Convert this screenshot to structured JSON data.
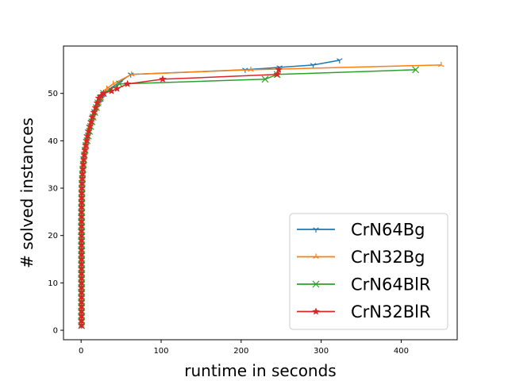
{
  "chart_data": {
    "type": "line",
    "title": "",
    "xlabel": "runtime in seconds",
    "ylabel": "# solved instances",
    "xlim": [
      -22,
      470
    ],
    "ylim": [
      -2,
      60
    ],
    "xticks": [
      0,
      100,
      200,
      300,
      400
    ],
    "yticks": [
      0,
      10,
      20,
      30,
      40,
      50
    ],
    "grid": false,
    "legend_position": "lower-right",
    "series": [
      {
        "name": "CrN64Bg",
        "color": "#1f77b4",
        "marker": "tri_down",
        "x": [
          0.5,
          0.5,
          0.5,
          0.5,
          0.5,
          0.5,
          0.5,
          0.5,
          0.5,
          0.5,
          0.5,
          0.5,
          0.5,
          0.5,
          0.5,
          0.5,
          0.5,
          0.5,
          0.5,
          0.5,
          0.5,
          0.5,
          0.5,
          0.5,
          0.5,
          0.6,
          0.7,
          0.8,
          0.9,
          1.0,
          1.2,
          1.5,
          1.8,
          2.2,
          2.7,
          3.2,
          3.8,
          4.5,
          5.2,
          6.0,
          7.0,
          8.5,
          10,
          12,
          14,
          17,
          20,
          23,
          26,
          30,
          36,
          62,
          205,
          248,
          290,
          323
        ],
        "y": [
          1,
          2,
          3,
          4,
          5,
          6,
          7,
          8,
          9,
          10,
          11,
          12,
          13,
          14,
          15,
          16,
          17,
          18,
          19,
          20,
          21,
          22,
          23,
          24,
          25,
          26,
          27,
          28,
          29,
          30,
          31,
          32,
          33,
          34,
          35,
          36,
          37,
          38,
          39,
          40,
          41,
          42,
          43,
          44,
          45,
          46,
          47,
          48,
          49,
          50,
          51,
          54,
          55,
          55.5,
          56,
          57
        ]
      },
      {
        "name": "CrN32Bg",
        "color": "#ff7f0e",
        "marker": "tri_up",
        "x": [
          0.5,
          0.5,
          0.5,
          0.5,
          0.5,
          0.5,
          0.5,
          0.5,
          0.5,
          0.5,
          0.5,
          0.5,
          0.5,
          0.5,
          0.5,
          0.5,
          0.5,
          0.5,
          0.5,
          0.5,
          0.5,
          0.5,
          0.5,
          0.5,
          0.5,
          0.6,
          0.7,
          0.8,
          0.9,
          1.0,
          1.2,
          1.5,
          1.8,
          2.2,
          2.7,
          3.3,
          4.0,
          5.0,
          6.0,
          7.0,
          8.0,
          9.5,
          11,
          13,
          15,
          17,
          19,
          22,
          25,
          28,
          32,
          40,
          63,
          212,
          450
        ],
        "y": [
          1,
          2,
          3,
          4,
          5,
          6,
          7,
          8,
          9,
          10,
          11,
          12,
          13,
          14,
          15,
          16,
          17,
          18,
          19,
          20,
          21,
          22,
          23,
          24,
          25,
          26,
          27,
          28,
          29,
          30,
          31,
          32,
          33,
          34,
          35,
          36,
          37,
          38,
          39,
          40,
          41,
          42,
          43,
          44,
          45,
          46,
          47,
          48,
          49,
          50,
          51,
          52,
          54,
          55,
          56
        ]
      },
      {
        "name": "CrN64BlR",
        "color": "#2ca02c",
        "marker": "x",
        "x": [
          0.5,
          0.5,
          0.5,
          0.5,
          0.5,
          0.5,
          0.5,
          0.5,
          0.5,
          0.5,
          0.5,
          0.5,
          0.5,
          0.5,
          0.5,
          0.5,
          0.5,
          0.5,
          0.5,
          0.5,
          0.5,
          0.5,
          0.5,
          0.5,
          0.5,
          0.6,
          0.7,
          0.8,
          0.9,
          1.0,
          1.2,
          1.5,
          1.8,
          2.2,
          2.7,
          3.3,
          4.0,
          5.0,
          6.0,
          7.5,
          9,
          10.5,
          12,
          13.5,
          15,
          17,
          19,
          21,
          24,
          28,
          48,
          230,
          245,
          418
        ],
        "y": [
          1,
          2,
          3,
          4,
          5,
          6,
          7,
          8,
          9,
          10,
          11,
          12,
          13,
          14,
          15,
          16,
          17,
          18,
          19,
          20,
          21,
          22,
          23,
          24,
          25,
          26,
          27,
          28,
          29,
          30,
          31,
          32,
          33,
          34,
          35,
          36,
          37,
          38,
          39,
          40,
          41,
          42,
          43,
          44,
          45,
          46,
          47,
          48,
          49,
          50,
          52,
          53,
          54,
          55
        ]
      },
      {
        "name": "CrN32BlR",
        "color": "#d62728",
        "marker": "star",
        "x": [
          0.5,
          0.5,
          0.5,
          0.5,
          0.5,
          0.5,
          0.5,
          0.5,
          0.5,
          0.5,
          0.5,
          0.5,
          0.5,
          0.5,
          0.5,
          0.5,
          0.5,
          0.5,
          0.5,
          0.5,
          0.5,
          0.5,
          0.5,
          0.5,
          0.5,
          0.6,
          0.7,
          0.8,
          0.9,
          1.0,
          1.2,
          1.5,
          1.8,
          2.2,
          2.7,
          3.3,
          4.0,
          5.0,
          6.0,
          7.0,
          8.0,
          9.5,
          11,
          12.5,
          14,
          16,
          18,
          20,
          22,
          25,
          28,
          38,
          45,
          58,
          102,
          245,
          247
        ],
        "y": [
          1,
          2,
          3,
          4,
          5,
          6,
          7,
          8,
          9,
          10,
          11,
          12,
          13,
          14,
          15,
          16,
          17,
          18,
          19,
          20,
          21,
          22,
          23,
          24,
          25,
          26,
          27,
          28,
          29,
          30,
          31,
          32,
          33,
          34,
          35,
          36,
          37,
          38,
          39,
          40,
          41,
          42,
          43,
          44,
          45,
          46,
          47,
          48,
          49,
          49.5,
          50,
          50.5,
          51,
          52,
          53,
          54,
          55
        ]
      }
    ]
  }
}
